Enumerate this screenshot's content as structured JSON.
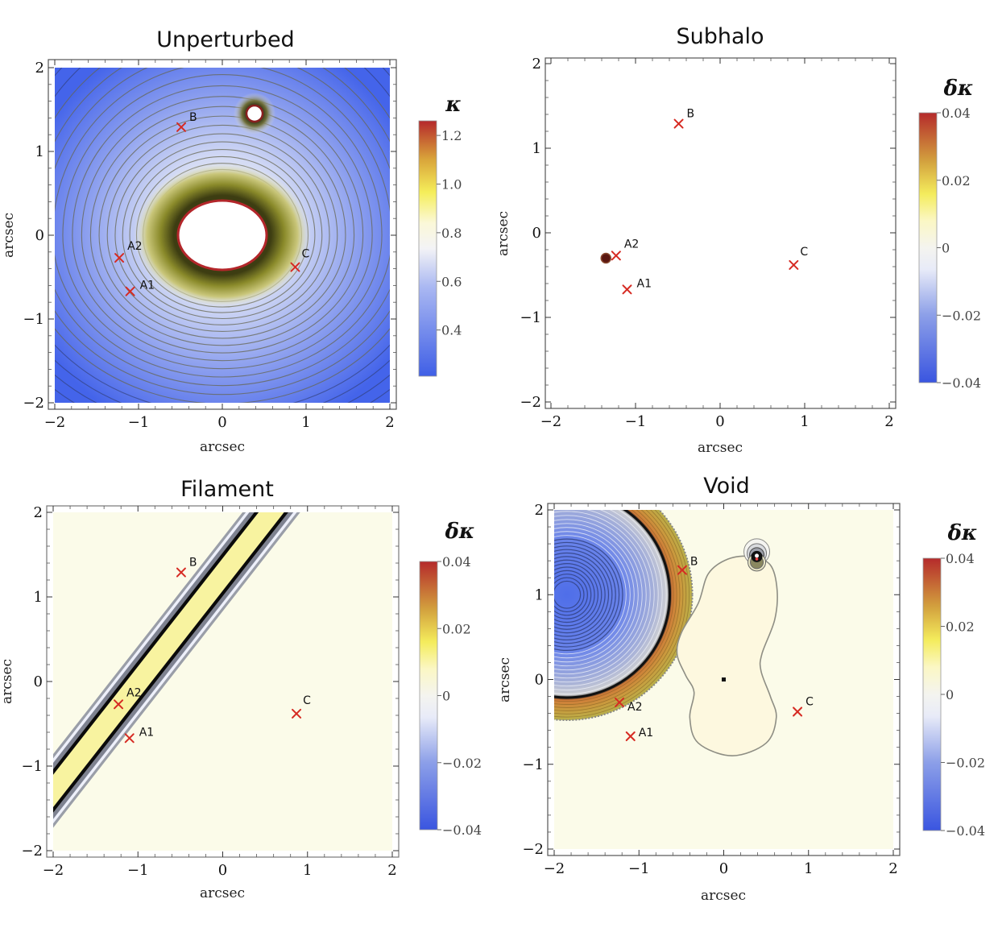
{
  "chart_data": [
    {
      "type": "heatmap",
      "title": "Unperturbed",
      "xlabel": "arcsec",
      "ylabel": "arcsec",
      "xlim": [
        -2,
        2
      ],
      "ylim": [
        -2,
        2
      ],
      "xticks": [
        "−2",
        "−1",
        "0",
        "1",
        "2"
      ],
      "yticks": [
        "2",
        "1",
        "0",
        "−1",
        "−2"
      ],
      "xtick_values": [
        -2,
        -1,
        0,
        1,
        2
      ],
      "ytick_values": [
        2,
        1,
        0,
        -1,
        -2
      ],
      "colorbar": {
        "title": "κ",
        "range": [
          0.21,
          1.26
        ],
        "ticks": [
          "1.2",
          "1.0",
          "0.8",
          "0.6",
          "0.4"
        ],
        "tick_values": [
          1.2,
          1.0,
          0.8,
          0.6,
          0.4
        ]
      },
      "features": {
        "main_lens_center": [
          0.0,
          0.0
        ],
        "main_lens_core_radii": [
          0.53,
          0.41
        ],
        "satellite_center": [
          0.39,
          1.45
        ],
        "satellite_core_radius": 0.1
      },
      "images": [
        {
          "label": "B",
          "x": -0.49,
          "y": 1.29
        },
        {
          "label": "A2",
          "x": -1.23,
          "y": -0.27
        },
        {
          "label": "A1",
          "x": -1.1,
          "y": -0.67
        },
        {
          "label": "C",
          "x": 0.87,
          "y": -0.38
        }
      ]
    },
    {
      "type": "heatmap",
      "title": "Subhalo",
      "xlabel": "arcsec",
      "ylabel": "arcsec",
      "xlim": [
        -2,
        2
      ],
      "ylim": [
        -2,
        2
      ],
      "xticks": [
        "−2",
        "−1",
        "0",
        "1",
        "2"
      ],
      "yticks": [
        "2",
        "1",
        "0",
        "−1",
        "−2"
      ],
      "xtick_values": [
        -2,
        -1,
        0,
        1,
        2
      ],
      "ytick_values": [
        2,
        1,
        0,
        -1,
        -2
      ],
      "colorbar": {
        "title": "δκ",
        "range": [
          -0.04,
          0.04
        ],
        "ticks": [
          "0.04",
          "0.02",
          "0",
          "−0.02",
          "−0.04"
        ],
        "tick_values": [
          0.04,
          0.02,
          0,
          -0.02,
          -0.04
        ]
      },
      "features": {
        "subhalo_center": [
          -1.35,
          -0.3
        ],
        "subhalo_radius": 0.06
      },
      "images": [
        {
          "label": "B",
          "x": -0.49,
          "y": 1.29
        },
        {
          "label": "A2",
          "x": -1.23,
          "y": -0.27
        },
        {
          "label": "A1",
          "x": -1.1,
          "y": -0.67
        },
        {
          "label": "C",
          "x": 0.87,
          "y": -0.38
        }
      ]
    },
    {
      "type": "heatmap",
      "title": "Filament",
      "xlabel": "arcsec",
      "ylabel": "arcsec",
      "xlim": [
        -2,
        2
      ],
      "ylim": [
        -2,
        2
      ],
      "xticks": [
        "−2",
        "−1",
        "0",
        "1",
        "2"
      ],
      "yticks": [
        "2",
        "1",
        "0",
        "−1",
        "−2"
      ],
      "xtick_values": [
        -2,
        -1,
        0,
        1,
        2
      ],
      "ytick_values": [
        2,
        1,
        0,
        -1,
        -2
      ],
      "colorbar": {
        "title": "δκ",
        "range": [
          -0.04,
          0.04
        ],
        "ticks": [
          "0.04",
          "0.02",
          "0",
          "−0.02",
          "−0.04"
        ],
        "tick_values": [
          0.04,
          0.02,
          0,
          -0.02,
          -0.04
        ]
      },
      "features": {
        "filament_slope": 1.28,
        "filament_through": [
          -1.2,
          -0.27
        ],
        "filament_core_halfwidth_x": 0.15,
        "filament_outer_halfwidth_x": 0.34
      },
      "images": [
        {
          "label": "B",
          "x": -0.49,
          "y": 1.29
        },
        {
          "label": "A2",
          "x": -1.23,
          "y": -0.27
        },
        {
          "label": "A1",
          "x": -1.1,
          "y": -0.67
        },
        {
          "label": "C",
          "x": 0.87,
          "y": -0.38
        }
      ]
    },
    {
      "type": "heatmap",
      "title": "Void",
      "xlabel": "arcsec",
      "ylabel": "arcsec",
      "xlim": [
        -2,
        2
      ],
      "ylim": [
        -2,
        2
      ],
      "xticks": [
        "−2",
        "−1",
        "0",
        "1",
        "2"
      ],
      "yticks": [
        "2",
        "1",
        "0",
        "−1",
        "−2"
      ],
      "xtick_values": [
        -2,
        -1,
        0,
        1,
        2
      ],
      "ytick_values": [
        2,
        1,
        0,
        -1,
        -2
      ],
      "colorbar": {
        "title": "δκ",
        "range": [
          -0.04,
          0.04
        ],
        "ticks": [
          "0.04",
          "0.02",
          "0",
          "−0.02",
          "−0.04"
        ],
        "tick_values": [
          0.04,
          0.02,
          0,
          -0.02,
          -0.04
        ]
      },
      "features": {
        "void_center": [
          -1.85,
          1.0
        ],
        "void_inner_radius": 1.2,
        "void_outer_radius": 1.48,
        "lens_center_marker": [
          0.0,
          0.0
        ],
        "satellite_center": [
          0.39,
          1.45
        ]
      },
      "images": [
        {
          "label": "B",
          "x": -0.49,
          "y": 1.29
        },
        {
          "label": "A2",
          "x": -1.23,
          "y": -0.27
        },
        {
          "label": "A1",
          "x": -1.1,
          "y": -0.67
        },
        {
          "label": "C",
          "x": 0.87,
          "y": -0.38
        }
      ]
    }
  ],
  "colors": {
    "marker": "#d62a22",
    "blue": "#3f63e8",
    "white": "#f6f6f4",
    "yellow": "#f7f27a",
    "red": "#b0242a",
    "pale": "#fbfbe9"
  }
}
